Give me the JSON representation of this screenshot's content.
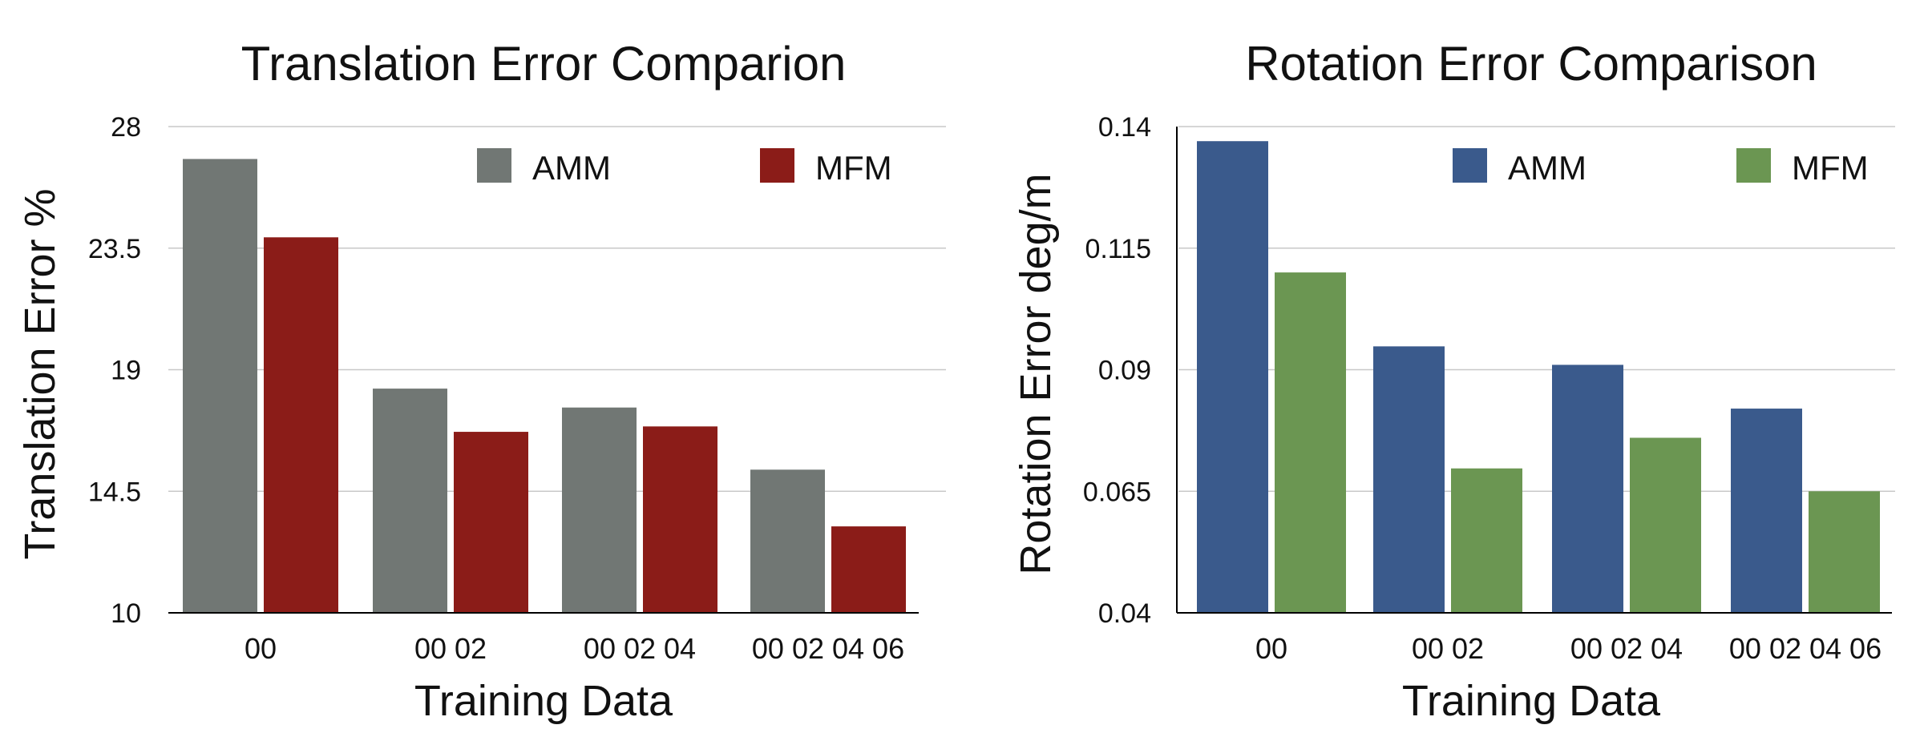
{
  "chart_data": [
    {
      "type": "bar",
      "title": "Translation Error Comparion",
      "xlabel": "Training Data",
      "ylabel": "Translation Error %",
      "categories": [
        "00",
        "00 02",
        "00 02 04",
        "00 02 04 06"
      ],
      "ylim": [
        10,
        28
      ],
      "yticks": [
        10,
        14.5,
        19,
        23.5,
        28
      ],
      "ytick_labels": [
        "10",
        "14.5",
        "19",
        "23.5",
        "28"
      ],
      "grid": true,
      "legend_position": "top-right",
      "series": [
        {
          "name": "AMM",
          "color": "#717774",
          "values": [
            26.8,
            18.3,
            17.6,
            15.3
          ]
        },
        {
          "name": "MFM",
          "color": "#8b1c18",
          "values": [
            23.9,
            16.7,
            16.9,
            13.2
          ]
        }
      ]
    },
    {
      "type": "bar",
      "title": "Rotation Error Comparison",
      "xlabel": "Training Data",
      "ylabel": "Rotation Error deg/m",
      "categories": [
        "00",
        "00 02",
        "00 02 04",
        "00 02 04 06"
      ],
      "ylim": [
        0.04,
        0.14
      ],
      "yticks": [
        0.04,
        0.065,
        0.09,
        0.115,
        0.14
      ],
      "ytick_labels": [
        "0.04",
        "0.065",
        "0.09",
        "0.115",
        "0.14"
      ],
      "grid": true,
      "legend_position": "top-right",
      "series": [
        {
          "name": "AMM",
          "color": "#3a5a8c",
          "values": [
            0.137,
            0.0948,
            0.091,
            0.082
          ]
        },
        {
          "name": "MFM",
          "color": "#6b9652",
          "values": [
            0.11,
            0.0697,
            0.076,
            0.065
          ]
        }
      ]
    }
  ]
}
